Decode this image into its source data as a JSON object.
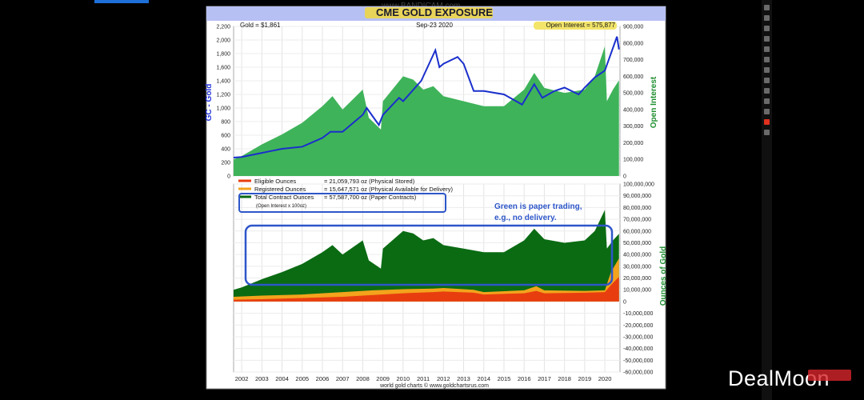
{
  "watermark": "www.BANDICAM.com",
  "brand": "DealMoon",
  "chart_data": [
    {
      "type": "line",
      "title": "CME GOLD EXPOSURE",
      "header_left": "Gold = $1,861",
      "header_date": "Sep-23  2020",
      "header_right": "Open Interest = 575,877",
      "ylabel_left": "GC - Gold",
      "ylabel_right": "Open Interest",
      "ylim_left": [
        0,
        2200
      ],
      "ylim_right": [
        0,
        900000
      ],
      "yticks_left": [
        "0",
        "200",
        "400",
        "600",
        "800",
        "1,000",
        "1,200",
        "1,400",
        "1,600",
        "1,800",
        "2,000",
        "2,200"
      ],
      "yticks_right": [
        "0",
        "100,000",
        "200,000",
        "300,000",
        "400,000",
        "500,000",
        "600,000",
        "700,000",
        "800,000",
        "900,000"
      ],
      "series": [
        {
          "name": "Gold",
          "color": "#1a2fcc",
          "x": [
            2001.6,
            2002,
            2003,
            2003.5,
            2004,
            2005,
            2006,
            2006.4,
            2007,
            2008,
            2008.2,
            2008.8,
            2009,
            2009.8,
            2010,
            2010.9,
            2011.6,
            2011.8,
            2012,
            2012.7,
            2013,
            2013.5,
            2014,
            2015,
            2015.9,
            2016.5,
            2016.9,
            2017.5,
            2018,
            2018.7,
            2019,
            2019.5,
            2020,
            2020.6,
            2020.7
          ],
          "y": [
            270,
            280,
            340,
            370,
            400,
            430,
            560,
            650,
            650,
            900,
            1000,
            750,
            900,
            1150,
            1100,
            1400,
            1850,
            1600,
            1650,
            1750,
            1650,
            1250,
            1250,
            1200,
            1050,
            1350,
            1150,
            1250,
            1300,
            1200,
            1300,
            1450,
            1550,
            2050,
            1861
          ]
        },
        {
          "name": "Open Interest",
          "color": "#3fb35a",
          "type": "area",
          "x": [
            2001.6,
            2002,
            2003,
            2004,
            2005,
            2006,
            2006.5,
            2007,
            2008,
            2008.3,
            2008.9,
            2009,
            2010,
            2010.5,
            2011,
            2011.5,
            2012,
            2013,
            2014,
            2015,
            2016,
            2016.5,
            2017,
            2018,
            2019,
            2019.5,
            2020,
            2020.1,
            2020.4,
            2020.7
          ],
          "y": [
            100000,
            120000,
            190000,
            250000,
            320000,
            420000,
            480000,
            400000,
            520000,
            350000,
            280000,
            450000,
            600000,
            580000,
            520000,
            540000,
            480000,
            450000,
            420000,
            420000,
            520000,
            620000,
            530000,
            500000,
            520000,
            600000,
            780000,
            450000,
            520000,
            575877
          ]
        }
      ]
    },
    {
      "type": "area",
      "ylabel_right": "Ounces of Gold",
      "ylim": [
        -60000000,
        100000000
      ],
      "yticks_right": [
        "-60,000,000",
        "-50,000,000",
        "-40,000,000",
        "-30,000,000",
        "-20,000,000",
        "-10,000,000",
        "0",
        "10,000,000",
        "20,000,000",
        "30,000,000",
        "40,000,000",
        "50,000,000",
        "60,000,000",
        "70,000,000",
        "80,000,000",
        "90,000,000",
        "100,000,000"
      ],
      "xticks": [
        "2002",
        "2003",
        "2004",
        "2005",
        "2006",
        "2007",
        "2008",
        "2009",
        "2010",
        "2011",
        "2012",
        "2013",
        "2014",
        "2015",
        "2016",
        "2017",
        "2018",
        "2019",
        "2020"
      ],
      "legend": [
        {
          "label": "Eligible Ounces",
          "value": "= 21,059,793 oz (Physical Stored)",
          "color": "#e83e0f"
        },
        {
          "label": "Registered Ounces",
          "value": "= 15,647,571 oz (Physical Available for Delivery)",
          "color": "#f3a31c"
        },
        {
          "label": "Total Contract Ounces",
          "value": "= 57,587,700 oz (Paper Contracts)",
          "color": "#0a6b13"
        }
      ],
      "legend_note": "(Open Interest x 100oz)",
      "annotation": [
        "Green is paper trading,",
        "e.g., no delivery."
      ],
      "footer": "world gold charts © www.goldchartsrus.com",
      "series": [
        {
          "name": "Total Contract Ounces",
          "color": "#0a6b13",
          "x": [
            2001.6,
            2002,
            2003,
            2004,
            2005,
            2006,
            2006.5,
            2007,
            2008,
            2008.3,
            2008.9,
            2009,
            2010,
            2010.5,
            2011,
            2011.5,
            2012,
            2013,
            2014,
            2015,
            2016,
            2016.5,
            2017,
            2018,
            2019,
            2019.5,
            2020,
            2020.1,
            2020.4,
            2020.7
          ],
          "y": [
            10000000,
            12000000,
            19000000,
            25000000,
            32000000,
            42000000,
            48000000,
            40000000,
            52000000,
            35000000,
            28000000,
            45000000,
            60000000,
            58000000,
            52000000,
            54000000,
            48000000,
            45000000,
            42000000,
            42000000,
            52000000,
            62000000,
            53000000,
            50000000,
            52000000,
            60000000,
            78000000,
            45000000,
            52000000,
            57587700
          ]
        },
        {
          "name": "Registered Ounces",
          "color": "#f3a31c",
          "x": [
            2001.6,
            2003,
            2005,
            2007,
            2008.5,
            2010,
            2011.5,
            2012,
            2013.5,
            2014,
            2016,
            2016.6,
            2017,
            2019,
            2020,
            2020.3,
            2020.7
          ],
          "y": [
            4000000,
            5000000,
            6000000,
            8000000,
            9500000,
            10500000,
            11000000,
            11500000,
            10000000,
            8000000,
            9500000,
            13000000,
            9500000,
            9000000,
            9500000,
            25000000,
            36707364
          ]
        },
        {
          "name": "Eligible Ounces",
          "color": "#e83e0f",
          "x": [
            2001.6,
            2003,
            2005,
            2007,
            2008.5,
            2010,
            2011.5,
            2012,
            2013.5,
            2014,
            2016,
            2016.6,
            2017,
            2019,
            2020,
            2020.3,
            2020.7
          ],
          "y": [
            1500000,
            2000000,
            3000000,
            4000000,
            5500000,
            7000000,
            8000000,
            8500000,
            7500000,
            6000000,
            7000000,
            9000000,
            7000000,
            7500000,
            8000000,
            14000000,
            21059793
          ]
        }
      ]
    }
  ]
}
